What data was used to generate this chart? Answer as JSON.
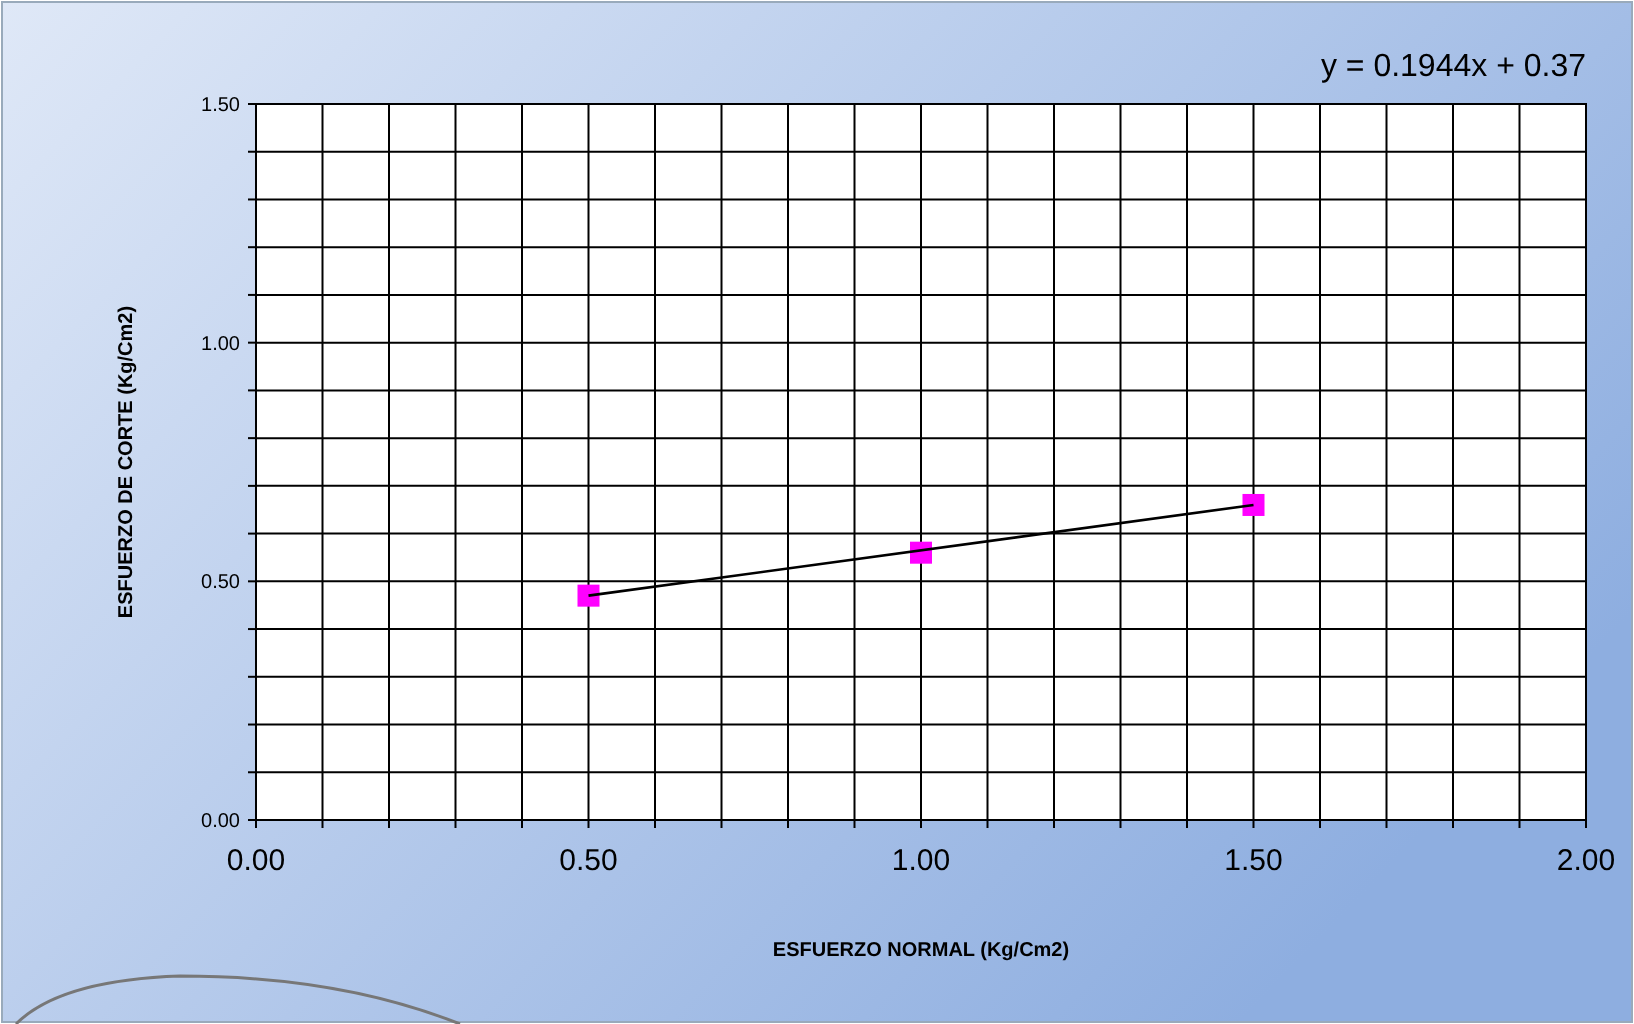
{
  "chart_data": {
    "type": "scatter",
    "xlabel": "ESFUERZO  NORMAL (Kg/Cm2)",
    "ylabel": "ESFUERZO  DE CORTE (Kg/Cm2)",
    "annotations": [
      "y = 0.1944x + 0.37"
    ],
    "xlim": [
      0,
      2
    ],
    "ylim": [
      0,
      1.5
    ],
    "xticks": [
      {
        "value": 0,
        "label": "0.00"
      },
      {
        "value": 0.1,
        "label": null
      },
      {
        "value": 0.2,
        "label": null
      },
      {
        "value": 0.3,
        "label": null
      },
      {
        "value": 0.4,
        "label": null
      },
      {
        "value": 0.5,
        "label": "0.50"
      },
      {
        "value": 0.6,
        "label": null
      },
      {
        "value": 0.7,
        "label": null
      },
      {
        "value": 0.8,
        "label": null
      },
      {
        "value": 0.9,
        "label": null
      },
      {
        "value": 1,
        "label": "1.00"
      },
      {
        "value": 1.1,
        "label": null
      },
      {
        "value": 1.2,
        "label": null
      },
      {
        "value": 1.3,
        "label": null
      },
      {
        "value": 1.4,
        "label": null
      },
      {
        "value": 1.5,
        "label": "1.50"
      },
      {
        "value": 1.6,
        "label": null
      },
      {
        "value": 1.7,
        "label": null
      },
      {
        "value": 1.8,
        "label": null
      },
      {
        "value": 1.9,
        "label": null
      },
      {
        "value": 2,
        "label": "2.00"
      }
    ],
    "yticks": [
      {
        "value": 0,
        "label": "0.00"
      },
      {
        "value": 0.1,
        "label": null
      },
      {
        "value": 0.2,
        "label": null
      },
      {
        "value": 0.3,
        "label": null
      },
      {
        "value": 0.4,
        "label": null
      },
      {
        "value": 0.5,
        "label": "0.50"
      },
      {
        "value": 0.6,
        "label": null
      },
      {
        "value": 0.7,
        "label": null
      },
      {
        "value": 0.8,
        "label": null
      },
      {
        "value": 0.9,
        "label": null
      },
      {
        "value": 1,
        "label": "1.00"
      },
      {
        "value": 1.1,
        "label": null
      },
      {
        "value": 1.2,
        "label": null
      },
      {
        "value": 1.3,
        "label": null
      },
      {
        "value": 1.4,
        "label": null
      },
      {
        "value": 1.5,
        "label": "1.50"
      }
    ],
    "grid": true,
    "series": [
      {
        "color": "#ff00ff",
        "marker": "square",
        "x": [
          0.5,
          1,
          1.5
        ],
        "values": [
          0.47,
          0.56,
          0.66
        ]
      },
      {
        "type": "line",
        "color": "#000000",
        "x": [
          0.5,
          1.5
        ],
        "values": [
          0.47,
          0.66
        ]
      }
    ]
  }
}
